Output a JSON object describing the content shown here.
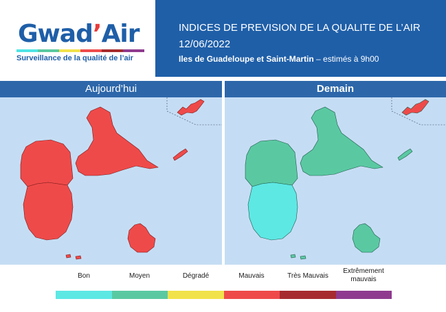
{
  "logo": {
    "name_main": "Gwad",
    "name_apos": "’",
    "name_end": "Air",
    "tagline": "Surveillance de la qualité de l’air",
    "bar_colors": [
      "#50e4e4",
      "#5ac9a0",
      "#f2e24a",
      "#ef4b4b",
      "#a62b2b",
      "#8e3a8e"
    ]
  },
  "header": {
    "title": "INDICES DE PREVISION DE LA QUALITE DE L’AIR",
    "date": "12/06/2022",
    "subtitle_bold": "Iles de Guadeloupe et Saint-Martin",
    "subtitle_rest": " – estimés à 9h00"
  },
  "panels": [
    {
      "label": "Aujourd’hui",
      "areas": {
        "grande_terre": "Mauvais",
        "basse_terre_north": "Mauvais",
        "basse_terre_south": "Mauvais",
        "marie_galante": "Mauvais",
        "la_desirade": "Mauvais",
        "les_saintes": "Mauvais",
        "saint_martin": "Mauvais"
      }
    },
    {
      "label": "Demain",
      "areas": {
        "grande_terre": "Moyen",
        "basse_terre_north": "Moyen",
        "basse_terre_south": "Bon",
        "marie_galante": "Moyen",
        "la_desirade": "Moyen",
        "les_saintes": "Moyen",
        "saint_martin": "Mauvais"
      }
    }
  ],
  "legend": [
    {
      "label": "Bon",
      "color": "#5de8e4"
    },
    {
      "label": "Moyen",
      "color": "#5ac9a2"
    },
    {
      "label": "Dégradé",
      "color": "#f1e24b"
    },
    {
      "label": "Mauvais",
      "color": "#ef4a4a"
    },
    {
      "label": "Très Mauvais",
      "color": "#a62b2f"
    },
    {
      "label": "Extrêmement mauvais",
      "color": "#8f3a8f"
    }
  ]
}
